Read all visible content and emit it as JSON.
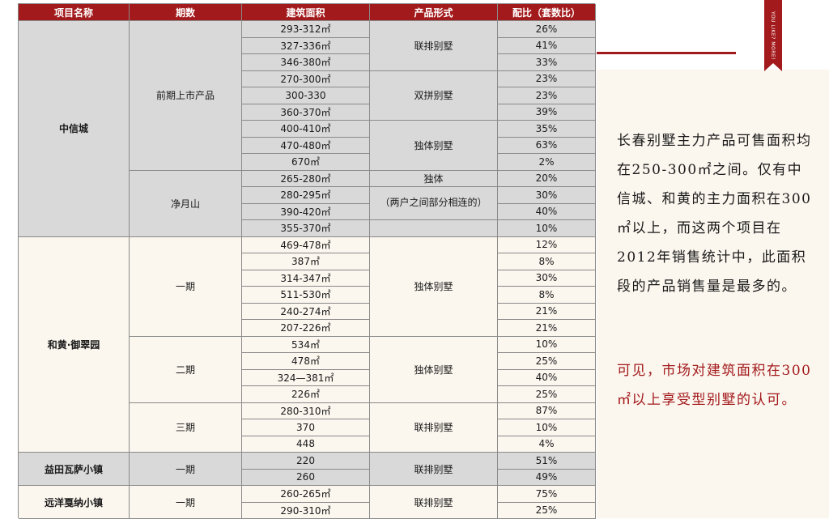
{
  "colors": {
    "accent": "#a31a1c",
    "gray_band": "#d9d9d9",
    "cream_band": "#fbf6ee"
  },
  "bookmark": {
    "text": "YOU LIKE? MORE!"
  },
  "table": {
    "headers": [
      "项目名称",
      "期数",
      "建筑面积",
      "产品形式",
      "配比（套数比）"
    ],
    "projects": [
      "中信城",
      "和黄·御翠园",
      "益田瓦萨小镇",
      "远洋戛纳小镇"
    ],
    "phases": [
      "前期上市产品",
      "净月山",
      "一期",
      "二期",
      "三期",
      "一期",
      "一期"
    ],
    "forms": [
      "联排别墅",
      "双拼别墅",
      "独体别墅",
      "独体",
      "（两户之间部分相连的）",
      "独体别墅",
      "独体别墅",
      "联排别墅",
      "联排别墅",
      "联排别墅"
    ],
    "areas": [
      "293-312㎡",
      "327-336㎡",
      "346-380㎡",
      "270-300㎡",
      "300-330",
      "360-370㎡",
      "400-410㎡",
      "470-480㎡",
      "670㎡",
      "265-280㎡",
      "280-295㎡",
      "390-420㎡",
      "355-370㎡",
      "469-478㎡",
      "387㎡",
      "314-347㎡",
      "511-530㎡",
      "240-274㎡",
      "207-226㎡",
      "534㎡",
      "478㎡",
      "324—381㎡",
      "226㎡",
      "280-310㎡",
      "370",
      "448",
      "220",
      "260",
      "260-265㎡",
      "290-310㎡"
    ],
    "ratios": [
      "26%",
      "41%",
      "33%",
      "23%",
      "23%",
      "39%",
      "35%",
      "63%",
      "2%",
      "20%",
      "30%",
      "40%",
      "10%",
      "12%",
      "8%",
      "30%",
      "8%",
      "21%",
      "21%",
      "10%",
      "25%",
      "40%",
      "25%",
      "87%",
      "10%",
      "4%",
      "51%",
      "49%",
      "75%",
      "25%"
    ]
  },
  "sidebar": {
    "paragraph1": "长春别墅主力产品可售面积均在250-300㎡之间。仅有中信城、和黄的主力面积在300㎡以上，而这两个项目在2012年销售统计中，此面积段的产品销售量是最多的。",
    "paragraph2": "可见，市场对建筑面积在300 ㎡以上享受型别墅的认可。"
  }
}
